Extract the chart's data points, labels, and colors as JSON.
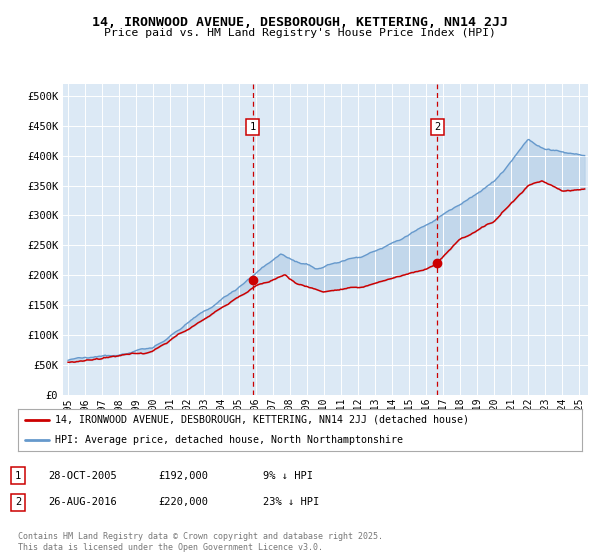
{
  "title": "14, IRONWOOD AVENUE, DESBOROUGH, KETTERING, NN14 2JJ",
  "subtitle": "Price paid vs. HM Land Registry's House Price Index (HPI)",
  "ylabel_ticks": [
    "£0",
    "£50K",
    "£100K",
    "£150K",
    "£200K",
    "£250K",
    "£300K",
    "£350K",
    "£400K",
    "£450K",
    "£500K"
  ],
  "ytick_values": [
    0,
    50000,
    100000,
    150000,
    200000,
    250000,
    300000,
    350000,
    400000,
    450000,
    500000
  ],
  "ylim": [
    0,
    520000
  ],
  "xlim_start": 1994.7,
  "xlim_end": 2025.5,
  "plot_bg_color": "#dce9f5",
  "fill_color": "#c5daf0",
  "red_line_color": "#cc0000",
  "blue_line_color": "#6699cc",
  "sale1_x": 2005.82,
  "sale1_y": 192000,
  "sale2_x": 2016.65,
  "sale2_y": 220000,
  "sale1_label": "28-OCT-2005",
  "sale1_price": "£192,000",
  "sale1_note": "9% ↓ HPI",
  "sale2_label": "26-AUG-2016",
  "sale2_price": "£220,000",
  "sale2_note": "23% ↓ HPI",
  "legend_line1": "14, IRONWOOD AVENUE, DESBOROUGH, KETTERING, NN14 2JJ (detached house)",
  "legend_line2": "HPI: Average price, detached house, North Northamptonshire",
  "footer": "Contains HM Land Registry data © Crown copyright and database right 2025.\nThis data is licensed under the Open Government Licence v3.0.",
  "xtick_years": [
    1995,
    1996,
    1997,
    1998,
    1999,
    2000,
    2001,
    2002,
    2003,
    2004,
    2005,
    2006,
    2007,
    2008,
    2009,
    2010,
    2011,
    2012,
    2013,
    2014,
    2015,
    2016,
    2017,
    2018,
    2019,
    2020,
    2021,
    2022,
    2023,
    2024,
    2025
  ]
}
